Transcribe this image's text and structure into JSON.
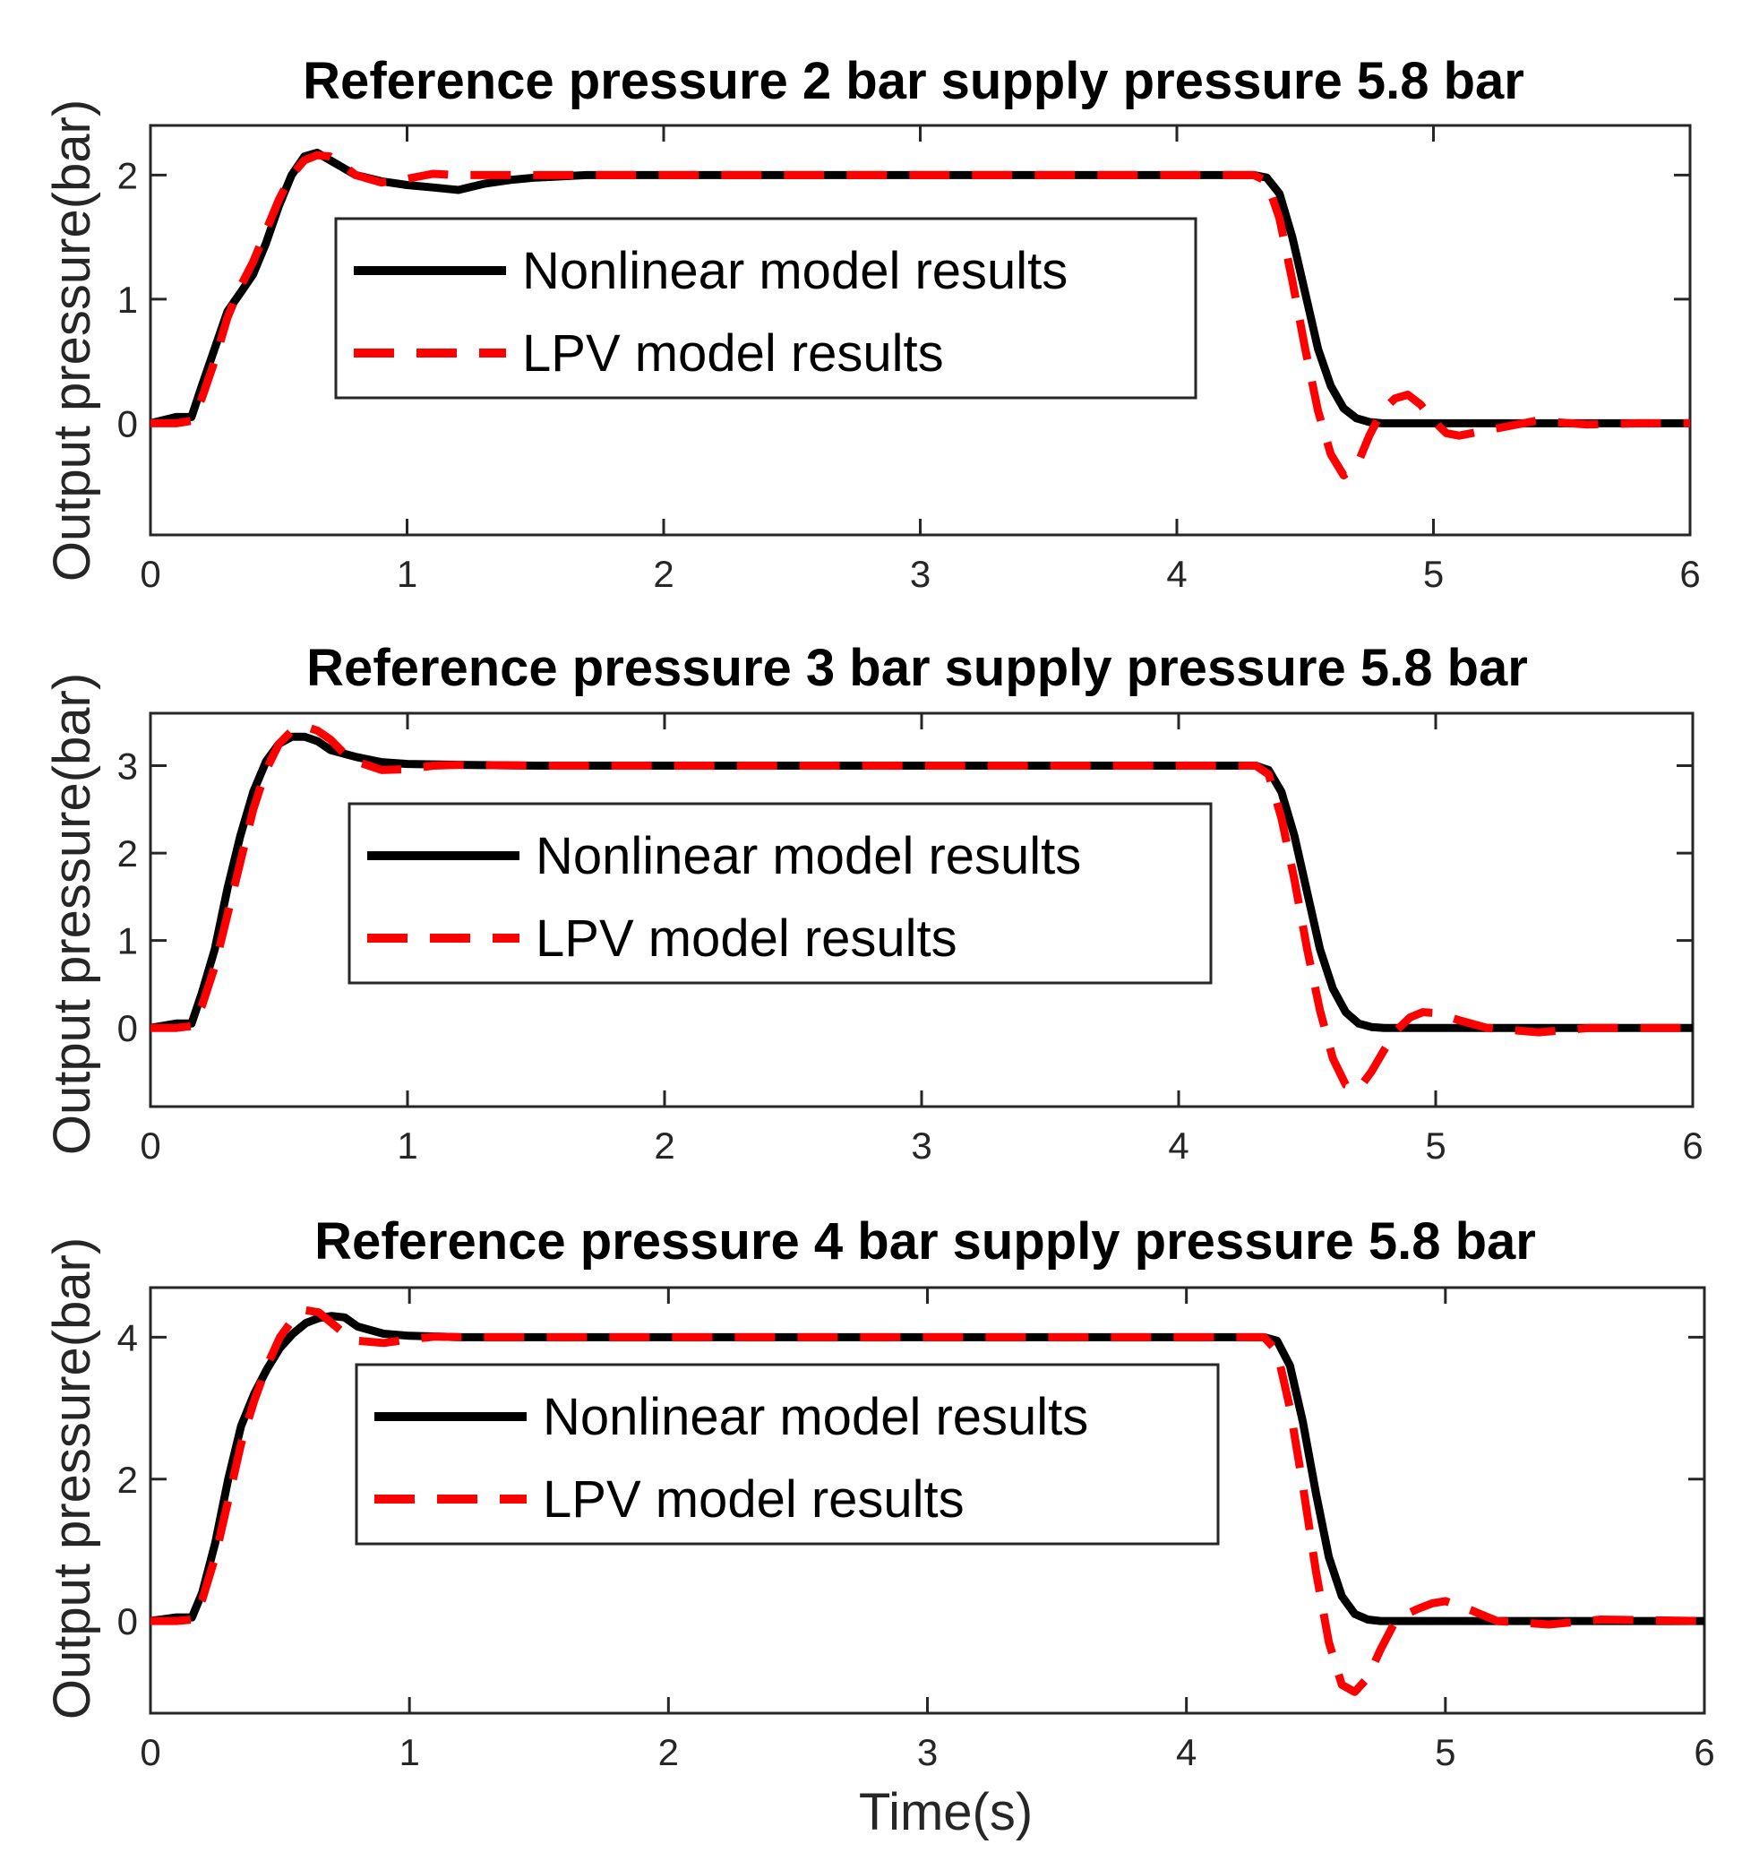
{
  "chart_data": [
    {
      "type": "line",
      "title": "Reference pressure 2 bar supply pressure 5.8 bar",
      "xlabel": "",
      "ylabel": "Output pressure(bar)",
      "xlim": [
        0,
        6
      ],
      "ylim": [
        -0.9,
        2.4
      ],
      "xticks": [
        0,
        1,
        2,
        3,
        4,
        5,
        6
      ],
      "xtick_labels": [
        "0",
        "1",
        "2",
        "3",
        "4",
        "5",
        "6"
      ],
      "yticks": [
        0,
        1,
        2
      ],
      "ytick_labels": [
        "0",
        "1",
        "2"
      ],
      "legend": {
        "placement": "upper-left-center",
        "entries": [
          "Nonlinear model results",
          "LPV model results"
        ]
      },
      "series": [
        {
          "name": "Nonlinear model results",
          "color": "#000000",
          "style": "solid",
          "x": [
            0,
            0.1,
            0.16,
            0.2,
            0.25,
            0.3,
            0.35,
            0.4,
            0.45,
            0.5,
            0.55,
            0.6,
            0.65,
            0.7,
            0.8,
            0.9,
            1.0,
            1.1,
            1.2,
            1.3,
            1.4,
            1.5,
            1.7,
            2.0,
            3.0,
            4.0,
            4.3,
            4.35,
            4.4,
            4.45,
            4.5,
            4.55,
            4.6,
            4.65,
            4.7,
            4.75,
            4.8,
            5.0,
            6.0
          ],
          "y": [
            0,
            0.05,
            0.05,
            0.3,
            0.6,
            0.9,
            1.05,
            1.2,
            1.45,
            1.75,
            2.0,
            2.15,
            2.18,
            2.12,
            2.0,
            1.95,
            1.92,
            1.9,
            1.88,
            1.93,
            1.96,
            1.98,
            2.0,
            2.0,
            2.0,
            2.0,
            2.0,
            1.98,
            1.85,
            1.5,
            1.05,
            0.6,
            0.3,
            0.12,
            0.04,
            0.01,
            0.0,
            0.0,
            0.0
          ]
        },
        {
          "name": "LPV model results",
          "color": "#ff0000",
          "style": "dashed",
          "x": [
            0,
            0.1,
            0.16,
            0.2,
            0.25,
            0.3,
            0.35,
            0.4,
            0.45,
            0.5,
            0.55,
            0.6,
            0.65,
            0.7,
            0.75,
            0.8,
            0.9,
            1.0,
            1.1,
            1.2,
            1.5,
            2.0,
            3.0,
            4.0,
            4.3,
            4.35,
            4.4,
            4.45,
            4.5,
            4.55,
            4.6,
            4.65,
            4.7,
            4.75,
            4.8,
            4.85,
            4.9,
            4.95,
            5.0,
            5.05,
            5.1,
            5.2,
            5.4,
            5.6,
            5.8,
            6.0
          ],
          "y": [
            0,
            0.0,
            0.02,
            0.2,
            0.5,
            0.85,
            1.1,
            1.3,
            1.55,
            1.8,
            2.0,
            2.12,
            2.16,
            2.15,
            2.08,
            2.0,
            1.94,
            1.97,
            2.01,
            2.0,
            2.0,
            2.0,
            2.0,
            2.0,
            2.0,
            1.95,
            1.65,
            1.15,
            0.6,
            0.1,
            -0.25,
            -0.42,
            -0.35,
            -0.1,
            0.1,
            0.2,
            0.23,
            0.15,
            0.02,
            -0.08,
            -0.1,
            -0.06,
            0.02,
            -0.01,
            0.0,
            0.0
          ]
        }
      ]
    },
    {
      "type": "line",
      "title": "Reference pressure 3 bar supply pressure 5.8 bar",
      "xlabel": "",
      "ylabel": "Output pressure(bar)",
      "xlim": [
        0,
        6
      ],
      "ylim": [
        -0.9,
        3.6
      ],
      "xticks": [
        0,
        1,
        2,
        3,
        4,
        5,
        6
      ],
      "xtick_labels": [
        "0",
        "1",
        "2",
        "3",
        "4",
        "5",
        "6"
      ],
      "yticks": [
        0,
        1,
        2,
        3
      ],
      "ytick_labels": [
        "0",
        "1",
        "2",
        "3"
      ],
      "legend": {
        "placement": "upper-left-center",
        "entries": [
          "Nonlinear model results",
          "LPV model results"
        ]
      },
      "series": [
        {
          "name": "Nonlinear model results",
          "color": "#000000",
          "style": "solid",
          "x": [
            0,
            0.1,
            0.16,
            0.2,
            0.25,
            0.3,
            0.35,
            0.4,
            0.45,
            0.5,
            0.55,
            0.6,
            0.65,
            0.7,
            0.8,
            0.9,
            1.0,
            1.2,
            1.5,
            2.0,
            3.0,
            4.0,
            4.3,
            4.35,
            4.4,
            4.45,
            4.5,
            4.55,
            4.6,
            4.65,
            4.7,
            4.75,
            4.8,
            5.0,
            6.0
          ],
          "y": [
            0,
            0.05,
            0.05,
            0.4,
            0.9,
            1.6,
            2.2,
            2.7,
            3.05,
            3.25,
            3.33,
            3.33,
            3.28,
            3.18,
            3.1,
            3.04,
            3.02,
            3.01,
            3.0,
            3.0,
            3.0,
            3.0,
            3.0,
            2.95,
            2.7,
            2.2,
            1.55,
            0.9,
            0.45,
            0.18,
            0.05,
            0.01,
            0.0,
            0.0,
            0.0
          ]
        },
        {
          "name": "LPV model results",
          "color": "#ff0000",
          "style": "dashed",
          "x": [
            0,
            0.1,
            0.16,
            0.2,
            0.25,
            0.3,
            0.35,
            0.4,
            0.45,
            0.5,
            0.55,
            0.6,
            0.65,
            0.7,
            0.75,
            0.8,
            0.9,
            1.0,
            1.1,
            1.2,
            1.5,
            2.0,
            3.0,
            4.0,
            4.3,
            4.35,
            4.4,
            4.45,
            4.5,
            4.55,
            4.6,
            4.65,
            4.7,
            4.75,
            4.8,
            4.85,
            4.9,
            4.95,
            5.0,
            5.1,
            5.2,
            5.4,
            5.6,
            6.0
          ],
          "y": [
            0,
            0.0,
            0.02,
            0.25,
            0.7,
            1.3,
            1.9,
            2.5,
            2.95,
            3.25,
            3.4,
            3.45,
            3.4,
            3.3,
            3.15,
            3.05,
            2.95,
            2.96,
            3.0,
            3.01,
            3.0,
            3.0,
            3.0,
            3.0,
            3.0,
            2.9,
            2.4,
            1.7,
            0.9,
            0.2,
            -0.35,
            -0.65,
            -0.7,
            -0.5,
            -0.25,
            -0.02,
            0.12,
            0.18,
            0.17,
            0.08,
            0.0,
            -0.05,
            0.0,
            0.0
          ]
        }
      ]
    },
    {
      "type": "line",
      "title": "Reference pressure 4 bar supply pressure 5.8 bar",
      "xlabel": "Time(s)",
      "ylabel": "Output pressure(bar)",
      "xlim": [
        0,
        6
      ],
      "ylim": [
        -1.3,
        4.7
      ],
      "xticks": [
        0,
        1,
        2,
        3,
        4,
        5,
        6
      ],
      "xtick_labels": [
        "0",
        "1",
        "2",
        "3",
        "4",
        "5",
        "6"
      ],
      "yticks": [
        0,
        2,
        4
      ],
      "ytick_labels": [
        "0",
        "2",
        "4"
      ],
      "legend": {
        "placement": "upper-left-center",
        "entries": [
          "Nonlinear model results",
          "LPV model results"
        ]
      },
      "series": [
        {
          "name": "Nonlinear model results",
          "color": "#000000",
          "style": "solid",
          "x": [
            0,
            0.1,
            0.16,
            0.2,
            0.25,
            0.3,
            0.35,
            0.4,
            0.45,
            0.5,
            0.55,
            0.6,
            0.65,
            0.7,
            0.75,
            0.8,
            0.9,
            1.0,
            1.2,
            1.5,
            2.0,
            3.0,
            4.0,
            4.3,
            4.35,
            4.4,
            4.45,
            4.5,
            4.55,
            4.6,
            4.65,
            4.7,
            4.75,
            4.8,
            5.0,
            6.0
          ],
          "y": [
            0,
            0.05,
            0.05,
            0.4,
            1.1,
            2.0,
            2.75,
            3.2,
            3.55,
            3.85,
            4.05,
            4.2,
            4.27,
            4.3,
            4.28,
            4.15,
            4.05,
            4.02,
            4.0,
            4.0,
            4.0,
            4.0,
            4.0,
            4.0,
            3.95,
            3.6,
            2.8,
            1.8,
            0.9,
            0.35,
            0.1,
            0.02,
            0.0,
            0.0,
            0.0,
            0.0
          ]
        },
        {
          "name": "LPV model results",
          "color": "#ff0000",
          "style": "dashed",
          "x": [
            0,
            0.1,
            0.16,
            0.2,
            0.25,
            0.3,
            0.35,
            0.4,
            0.45,
            0.5,
            0.55,
            0.6,
            0.65,
            0.7,
            0.75,
            0.8,
            0.9,
            1.0,
            1.1,
            1.2,
            1.5,
            2.0,
            3.0,
            4.0,
            4.3,
            4.35,
            4.4,
            4.45,
            4.5,
            4.55,
            4.6,
            4.65,
            4.7,
            4.75,
            4.8,
            4.85,
            4.9,
            4.95,
            5.0,
            5.1,
            5.2,
            5.4,
            5.6,
            6.0
          ],
          "y": [
            0,
            0.0,
            0.02,
            0.3,
            0.9,
            1.7,
            2.5,
            3.1,
            3.6,
            4.0,
            4.25,
            4.38,
            4.35,
            4.2,
            4.05,
            3.95,
            3.92,
            3.97,
            4.01,
            4.0,
            4.0,
            4.0,
            4.0,
            4.0,
            4.0,
            3.8,
            3.0,
            1.9,
            0.7,
            -0.3,
            -0.9,
            -1.0,
            -0.8,
            -0.4,
            -0.05,
            0.1,
            0.18,
            0.25,
            0.28,
            0.15,
            0.0,
            -0.05,
            0.02,
            0.0
          ]
        }
      ]
    }
  ]
}
